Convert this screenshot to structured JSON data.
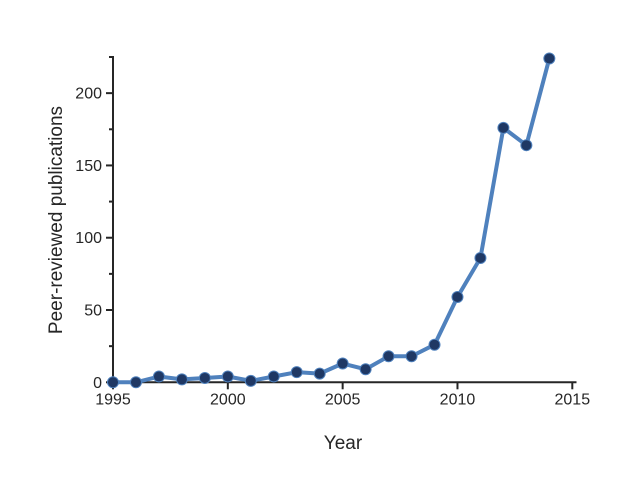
{
  "chart_data": {
    "type": "line",
    "title": "",
    "xlabel": "Year",
    "ylabel": "Peer-reviewed publications",
    "series_name": "Peer-reviewed publications",
    "x": [
      1995,
      1996,
      1997,
      1998,
      1999,
      2000,
      2001,
      2002,
      2003,
      2004,
      2005,
      2006,
      2007,
      2008,
      2009,
      2010,
      2011,
      2012,
      2013,
      2014
    ],
    "values": [
      0,
      0,
      4,
      2,
      3,
      4,
      1,
      4,
      7,
      6,
      13,
      9,
      18,
      18,
      26,
      59,
      86,
      176,
      164,
      224
    ],
    "xlim": [
      1995,
      2015
    ],
    "ylim": [
      0,
      225
    ],
    "x_ticks": [
      1995,
      2000,
      2005,
      2010,
      2015
    ],
    "y_ticks": [
      0,
      50,
      100,
      150,
      200
    ],
    "y_minor_ticks": [
      25,
      75,
      125,
      175,
      225
    ],
    "grid": false,
    "legend_position": "none",
    "line_color": "#4F81BD",
    "marker_color": "#1F3864",
    "axis_color": "#262626",
    "text_color": "#262626",
    "background_color": "#FFFFFF"
  }
}
